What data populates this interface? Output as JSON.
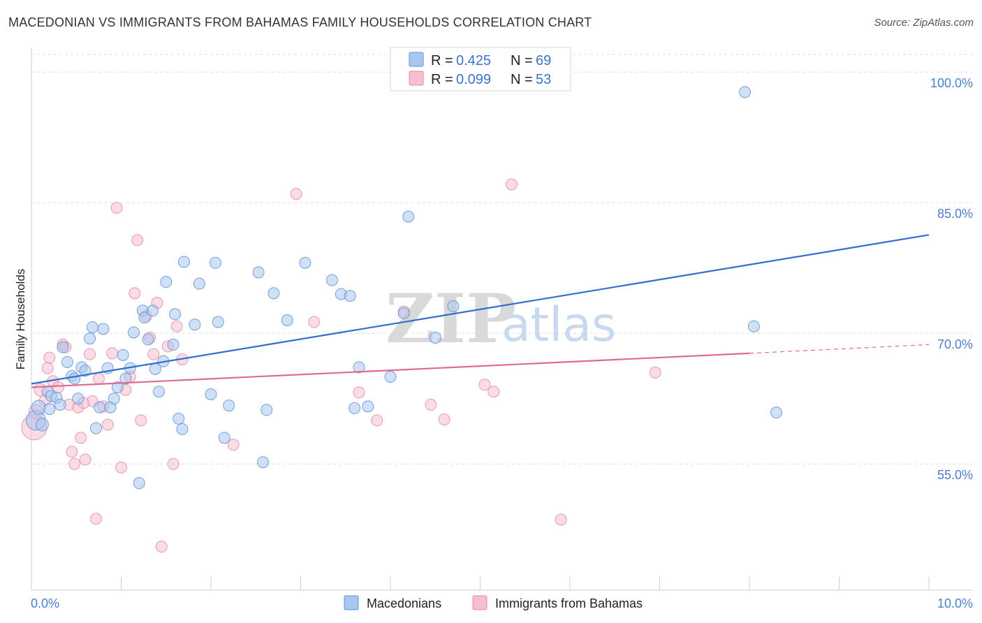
{
  "title": "MACEDONIAN VS IMMIGRANTS FROM BAHAMAS FAMILY HOUSEHOLDS CORRELATION CHART",
  "source": "Source: ZipAtlas.com",
  "watermark": {
    "zip": "ZIP",
    "atlas": "atlas"
  },
  "colors": {
    "blue_fill": "#a9c6ee",
    "blue_stroke": "#5f91d6",
    "blue_line": "#2f6fcf",
    "pink_fill": "#f6bfd0",
    "pink_stroke": "#e58aa8",
    "pink_line": "#e06a92",
    "grid": "#dcdcdc",
    "tick_text": "#4a7fd0"
  },
  "legend": {
    "rows": [
      {
        "r_label": "R =",
        "r_value": "0.425",
        "n_label": "N =",
        "n_value": "69",
        "series": "blue"
      },
      {
        "r_label": "R =",
        "r_value": "0.099",
        "n_label": "N =",
        "n_value": "53",
        "series": "pink"
      }
    ]
  },
  "bottom_legend": [
    "Macedonians",
    "Immigrants from Bahamas"
  ],
  "chart_data": {
    "type": "scatter",
    "title": "MACEDONIAN VS IMMIGRANTS FROM BAHAMAS FAMILY HOUSEHOLDS CORRELATION CHART",
    "xlabel": "",
    "ylabel": "Family Households",
    "xlim": [
      0,
      10
    ],
    "ylim": [
      40.5,
      102.5
    ],
    "x_tick_labels": [
      "0.0%",
      "10.0%"
    ],
    "y_ticks": [
      55,
      70,
      85,
      100
    ],
    "y_tick_labels": [
      "55.0%",
      "70.0%",
      "85.0%",
      "100.0%"
    ],
    "series": [
      {
        "name": "Macedonians",
        "color": "blue",
        "r": 0.425,
        "n": 69,
        "trend": {
          "x0": 0,
          "y0": 64.2,
          "x1": 10,
          "y1": 81.3
        },
        "points": [
          [
            0.05,
            60.0,
            14
          ],
          [
            0.08,
            61.5,
            10
          ],
          [
            0.12,
            59.5,
            9
          ],
          [
            0.18,
            63.3,
            8
          ],
          [
            0.2,
            61.3,
            8
          ],
          [
            0.22,
            62.8,
            8
          ],
          [
            0.28,
            62.6,
            8
          ],
          [
            0.32,
            61.8,
            8
          ],
          [
            0.35,
            68.4,
            8
          ],
          [
            0.4,
            66.7,
            8
          ],
          [
            0.45,
            65.1,
            8
          ],
          [
            0.48,
            64.8,
            8
          ],
          [
            0.52,
            62.5,
            8
          ],
          [
            0.56,
            66.1,
            8
          ],
          [
            0.6,
            65.7,
            8
          ],
          [
            0.65,
            69.4,
            8
          ],
          [
            0.68,
            70.7,
            8
          ],
          [
            0.72,
            59.1,
            8
          ],
          [
            0.76,
            61.5,
            8
          ],
          [
            0.8,
            70.5,
            8
          ],
          [
            0.85,
            66.0,
            8
          ],
          [
            0.88,
            61.5,
            8
          ],
          [
            0.92,
            62.5,
            8
          ],
          [
            0.96,
            63.8,
            8
          ],
          [
            1.02,
            67.5,
            8
          ],
          [
            1.05,
            64.8,
            8
          ],
          [
            1.1,
            66.0,
            8
          ],
          [
            1.14,
            70.1,
            8
          ],
          [
            1.2,
            52.8,
            8
          ],
          [
            1.24,
            72.6,
            8
          ],
          [
            1.26,
            71.8,
            8
          ],
          [
            1.3,
            69.3,
            8
          ],
          [
            1.35,
            72.6,
            8
          ],
          [
            1.38,
            65.9,
            8
          ],
          [
            1.42,
            63.3,
            8
          ],
          [
            1.47,
            66.8,
            8
          ],
          [
            1.5,
            75.9,
            8
          ],
          [
            1.58,
            68.7,
            8
          ],
          [
            1.6,
            72.2,
            8
          ],
          [
            1.64,
            60.2,
            8
          ],
          [
            1.68,
            59.0,
            8
          ],
          [
            1.7,
            78.2,
            8
          ],
          [
            1.82,
            71.0,
            8
          ],
          [
            1.87,
            75.7,
            8
          ],
          [
            2.0,
            63.0,
            8
          ],
          [
            2.05,
            78.1,
            8
          ],
          [
            2.08,
            71.3,
            8
          ],
          [
            2.15,
            58.0,
            8
          ],
          [
            2.2,
            61.7,
            8
          ],
          [
            2.53,
            77.0,
            8
          ],
          [
            2.58,
            55.2,
            8
          ],
          [
            2.62,
            61.2,
            8
          ],
          [
            2.7,
            74.6,
            8
          ],
          [
            2.85,
            71.5,
            8
          ],
          [
            3.05,
            78.1,
            8
          ],
          [
            3.35,
            76.1,
            8
          ],
          [
            3.45,
            74.5,
            8
          ],
          [
            3.55,
            74.3,
            8
          ],
          [
            3.6,
            61.4,
            8
          ],
          [
            3.65,
            66.1,
            8
          ],
          [
            3.75,
            61.6,
            8
          ],
          [
            4.0,
            65.0,
            8
          ],
          [
            4.15,
            72.3,
            8
          ],
          [
            4.2,
            83.4,
            8
          ],
          [
            4.5,
            69.5,
            8
          ],
          [
            4.7,
            73.1,
            8
          ],
          [
            7.95,
            97.7,
            8
          ],
          [
            8.05,
            70.8,
            8
          ],
          [
            8.3,
            60.9,
            8
          ]
        ]
      },
      {
        "name": "Immigrants from Bahamas",
        "color": "pink",
        "r": 0.099,
        "n": 53,
        "trend": {
          "x0": 0,
          "y0": 63.8,
          "x1": 8.0,
          "y1": 67.7,
          "dashed_to": {
            "x": 10,
            "y": 68.7
          }
        },
        "points": [
          [
            0.03,
            59.2,
            18
          ],
          [
            0.05,
            61.0,
            10
          ],
          [
            0.1,
            63.5,
            9
          ],
          [
            0.15,
            62.3,
            8
          ],
          [
            0.18,
            66.0,
            8
          ],
          [
            0.2,
            67.2,
            8
          ],
          [
            0.24,
            64.5,
            8
          ],
          [
            0.3,
            63.8,
            8
          ],
          [
            0.35,
            68.7,
            8
          ],
          [
            0.38,
            68.4,
            8
          ],
          [
            0.42,
            61.8,
            8
          ],
          [
            0.45,
            56.4,
            8
          ],
          [
            0.48,
            55.0,
            8
          ],
          [
            0.52,
            61.5,
            8
          ],
          [
            0.55,
            58.0,
            8
          ],
          [
            0.6,
            55.5,
            8
          ],
          [
            0.65,
            67.6,
            8
          ],
          [
            0.68,
            62.2,
            8
          ],
          [
            0.72,
            48.7,
            8
          ],
          [
            0.75,
            64.8,
            8
          ],
          [
            0.8,
            61.6,
            8
          ],
          [
            0.85,
            59.5,
            8
          ],
          [
            0.9,
            67.7,
            8
          ],
          [
            0.95,
            84.4,
            8
          ],
          [
            1.0,
            54.6,
            8
          ],
          [
            1.05,
            63.5,
            8
          ],
          [
            1.1,
            65.0,
            8
          ],
          [
            1.15,
            74.6,
            8
          ],
          [
            1.18,
            80.7,
            8
          ],
          [
            1.22,
            60.0,
            8
          ],
          [
            1.28,
            72.0,
            8
          ],
          [
            1.32,
            69.5,
            8
          ],
          [
            1.36,
            67.6,
            8
          ],
          [
            1.4,
            73.5,
            8
          ],
          [
            1.45,
            45.5,
            8
          ],
          [
            1.52,
            68.5,
            8
          ],
          [
            1.58,
            55.0,
            8
          ],
          [
            1.62,
            70.8,
            8
          ],
          [
            1.68,
            67.0,
            8
          ],
          [
            2.25,
            57.2,
            8
          ],
          [
            2.95,
            86.0,
            8
          ],
          [
            3.15,
            71.3,
            8
          ],
          [
            3.65,
            63.2,
            8
          ],
          [
            3.85,
            60.0,
            8
          ],
          [
            4.15,
            72.5,
            8
          ],
          [
            4.45,
            61.8,
            8
          ],
          [
            4.6,
            60.1,
            8
          ],
          [
            5.05,
            64.1,
            8
          ],
          [
            5.15,
            63.3,
            8
          ],
          [
            5.35,
            87.1,
            8
          ],
          [
            5.9,
            48.6,
            8
          ],
          [
            6.95,
            65.5,
            8
          ],
          [
            0.58,
            62.0,
            8
          ]
        ]
      }
    ]
  }
}
